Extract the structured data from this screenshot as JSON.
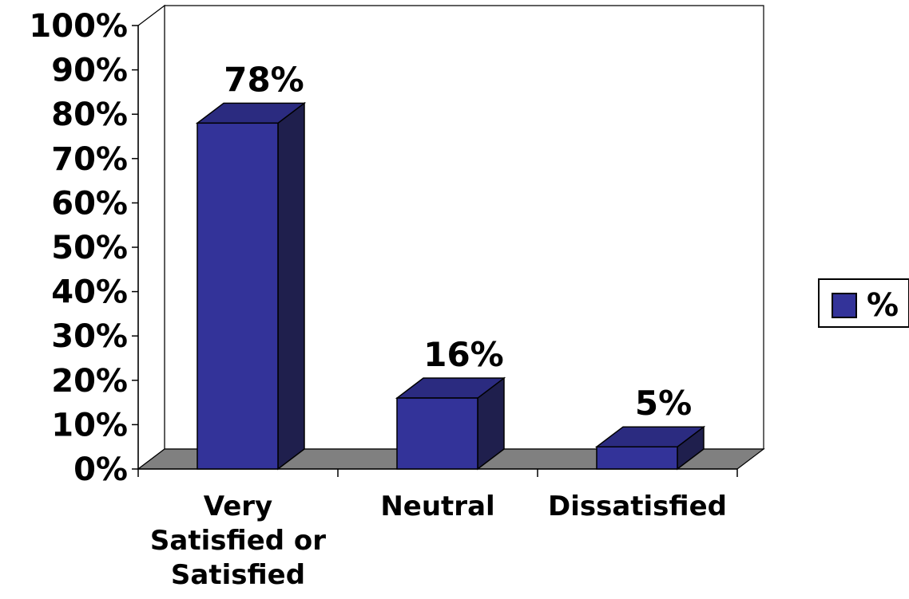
{
  "chart_data": {
    "type": "bar",
    "categories": [
      [
        "Very",
        "Satisfied or",
        "Satisfied"
      ],
      [
        "Neutral"
      ],
      [
        "Dissatisfied"
      ]
    ],
    "series": [
      {
        "name": "%",
        "values": [
          78,
          16,
          5
        ]
      }
    ],
    "data_labels": [
      "78%",
      "16%",
      "5%"
    ],
    "ylim": [
      0,
      100
    ],
    "y_ticks": [
      "0%",
      "10%",
      "20%",
      "30%",
      "40%",
      "50%",
      "60%",
      "70%",
      "80%",
      "90%",
      "100%"
    ],
    "three_d": true,
    "grid": false,
    "legend_placement": "right",
    "colors": {
      "bar_front": "#333399",
      "bar_top": "#2b2b80",
      "bar_side": "#1f1f4d",
      "floor": "#808080",
      "axis": "#000000"
    }
  }
}
